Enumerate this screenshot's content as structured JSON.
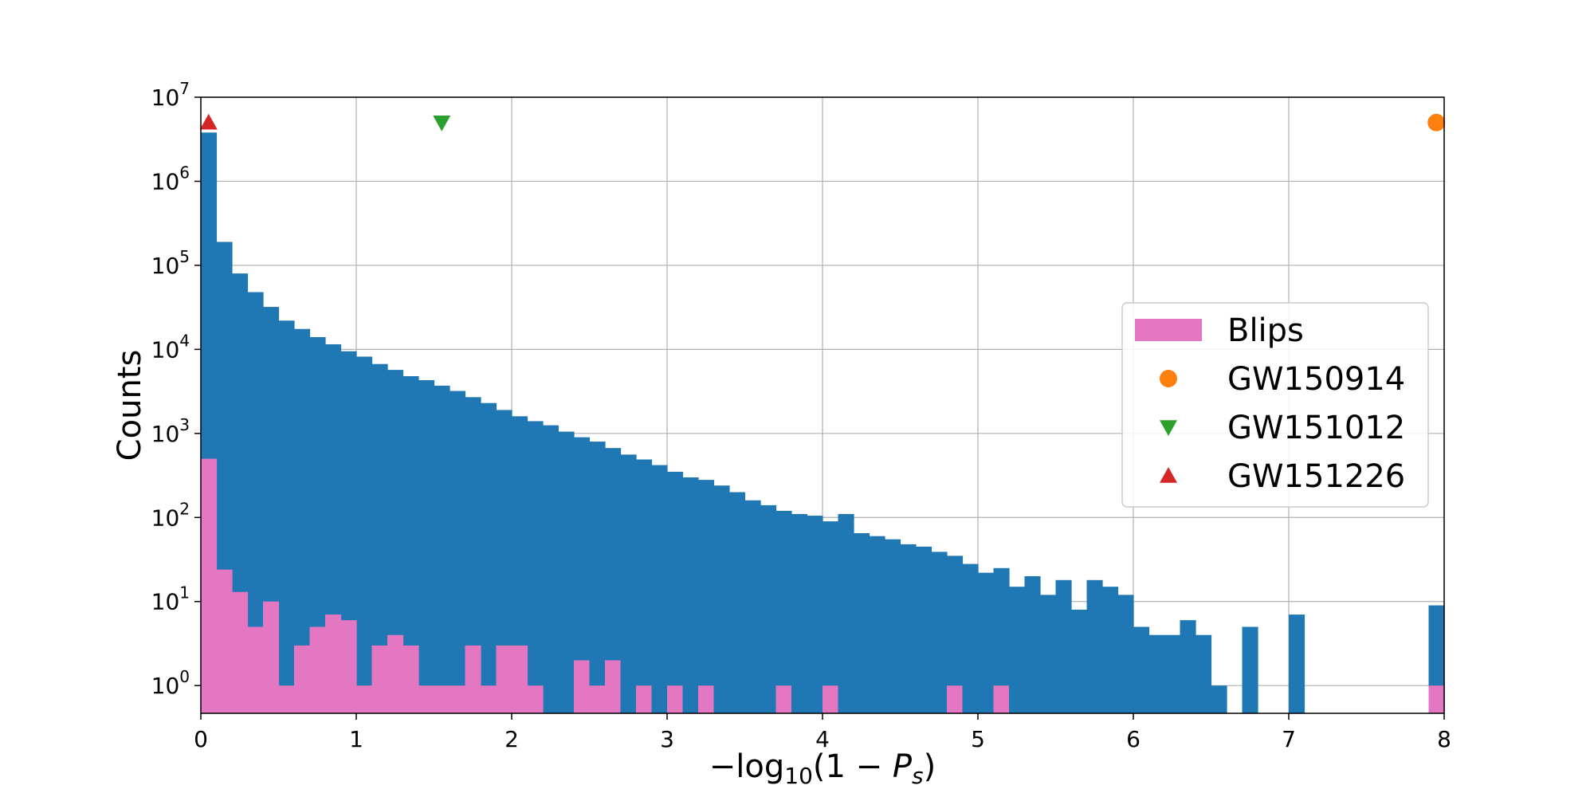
{
  "chart_data": {
    "type": "bar",
    "xlabel_parts": {
      "pre": "−log",
      "sub": "10",
      "mid": "(1 − ",
      "var": "P",
      "varsub": "s",
      "post": ")"
    },
    "ylabel": "Counts",
    "xlim": [
      0,
      8
    ],
    "ylim_log10": [
      -0.33,
      7
    ],
    "y_scale": "log",
    "grid": true,
    "legend_position": "center-right",
    "x_ticks": [
      0,
      1,
      2,
      3,
      4,
      5,
      6,
      7,
      8
    ],
    "y_ticks": [
      {
        "base": "10",
        "exp": "0",
        "value": 1
      },
      {
        "base": "10",
        "exp": "1",
        "value": 10
      },
      {
        "base": "10",
        "exp": "2",
        "value": 100
      },
      {
        "base": "10",
        "exp": "3",
        "value": 1000
      },
      {
        "base": "10",
        "exp": "4",
        "value": 10000
      },
      {
        "base": "10",
        "exp": "5",
        "value": 100000
      },
      {
        "base": "10",
        "exp": "6",
        "value": 1000000
      },
      {
        "base": "10",
        "exp": "7",
        "value": 10000000
      }
    ],
    "bin_width": 0.1,
    "series": [
      {
        "kind": "all",
        "color": "#1f77b4",
        "values": [
          3800000,
          190000,
          80000,
          48000,
          32000,
          22000,
          17500,
          14000,
          11500,
          9500,
          8200,
          6700,
          5700,
          4800,
          4300,
          3700,
          3200,
          2700,
          2300,
          1900,
          1600,
          1400,
          1250,
          1050,
          900,
          800,
          670,
          560,
          490,
          420,
          350,
          300,
          280,
          240,
          200,
          160,
          140,
          120,
          110,
          105,
          90,
          110,
          65,
          60,
          55,
          48,
          45,
          39,
          35,
          28,
          22,
          25,
          15,
          20,
          12,
          18,
          8,
          18,
          15,
          12,
          5,
          4,
          4,
          6,
          4,
          1,
          0,
          5,
          0,
          0,
          7,
          0,
          0,
          0,
          0,
          0,
          0,
          0,
          0,
          9
        ]
      },
      {
        "kind": "blips",
        "name": "Blips",
        "color": "#e377c2",
        "values": [
          500,
          24,
          13,
          5,
          10,
          1,
          3,
          5,
          7,
          6,
          1,
          3,
          4,
          3,
          1,
          1,
          1,
          3,
          1,
          3,
          3,
          1,
          0,
          0,
          0,
          0,
          0,
          0,
          0,
          0,
          0,
          0,
          0,
          0,
          0,
          0,
          0,
          0,
          0,
          0,
          0,
          0,
          0,
          0,
          0,
          0,
          0,
          0,
          0,
          0,
          0,
          0,
          0,
          0,
          0,
          0,
          0,
          0,
          0,
          0,
          0,
          0,
          0,
          0,
          0,
          0,
          0,
          0,
          0,
          0,
          0,
          0,
          0,
          0,
          0,
          0,
          0,
          0,
          0,
          1
        ],
        "extra_bins": [
          {
            "x": 2.4,
            "value": 2
          },
          {
            "x": 2.5,
            "value": 1
          },
          {
            "x": 2.6,
            "value": 2
          },
          {
            "x": 2.8,
            "value": 1
          },
          {
            "x": 3.0,
            "value": 1
          },
          {
            "x": 3.2,
            "value": 1
          },
          {
            "x": 3.7,
            "value": 1
          },
          {
            "x": 4.0,
            "value": 1
          },
          {
            "x": 4.8,
            "value": 1
          },
          {
            "x": 5.1,
            "value": 1
          }
        ]
      }
    ],
    "events": [
      {
        "name": "GW150914",
        "x": 7.95,
        "y": 5000000,
        "marker": "circle",
        "color": "#ff7f0e"
      },
      {
        "name": "GW151012",
        "x": 1.55,
        "y": 5000000,
        "marker": "triangle-down",
        "color": "#2ca02c"
      },
      {
        "name": "GW151226",
        "x": 0.05,
        "y": 5000000,
        "marker": "triangle-up",
        "color": "#d62728"
      }
    ],
    "legend": [
      {
        "label": "Blips",
        "marker": "patch",
        "color": "#e377c2"
      },
      {
        "label": "GW150914",
        "marker": "circle",
        "color": "#ff7f0e"
      },
      {
        "label": "GW151012",
        "marker": "triangle-down",
        "color": "#2ca02c"
      },
      {
        "label": "GW151226",
        "marker": "triangle-up",
        "color": "#d62728"
      }
    ]
  }
}
